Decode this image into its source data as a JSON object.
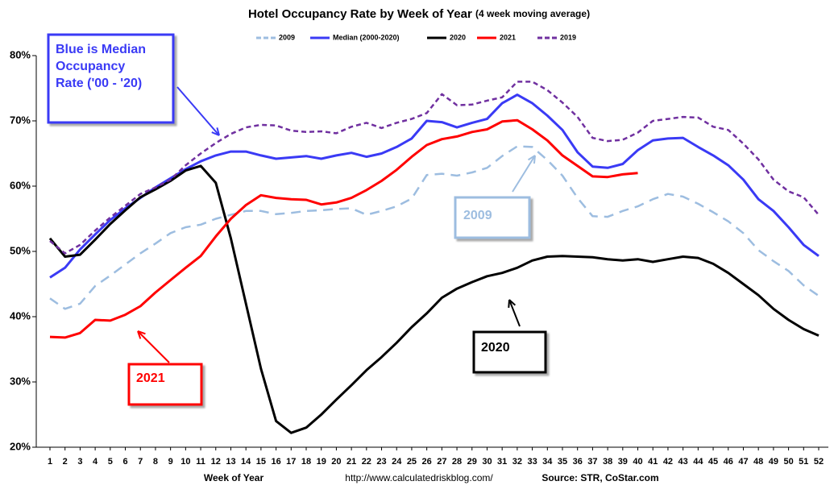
{
  "chart_data": {
    "type": "line",
    "title": "Hotel Occupancy Rate by  Week of Year",
    "subtitle": "(4 week moving average)",
    "x_label": "Week of Year",
    "url": "http://www.calculatedriskblog.com/",
    "source": "Source: STR, CoStar.com",
    "categories": [
      1,
      2,
      3,
      4,
      5,
      6,
      7,
      8,
      9,
      10,
      11,
      12,
      13,
      14,
      15,
      16,
      17,
      18,
      19,
      20,
      21,
      22,
      23,
      24,
      25,
      26,
      27,
      28,
      29,
      30,
      31,
      32,
      33,
      34,
      35,
      36,
      37,
      38,
      39,
      40,
      41,
      42,
      43,
      44,
      45,
      46,
      47,
      48,
      49,
      50,
      51,
      52
    ],
    "ylim": [
      20,
      80
    ],
    "yticks": [
      {
        "value": 20,
        "label": "20%"
      },
      {
        "value": 30,
        "label": "30%"
      },
      {
        "value": 40,
        "label": "40%"
      },
      {
        "value": 50,
        "label": "50%"
      },
      {
        "value": 60,
        "label": "60%"
      },
      {
        "value": 70,
        "label": "70%"
      },
      {
        "value": 80,
        "label": "80%"
      }
    ],
    "grid": false,
    "legend": "top",
    "series": [
      {
        "name": "2009",
        "color": "#9dbde0",
        "style": "dashed",
        "values": [
          42.8,
          41.2,
          42,
          44.7,
          46.3,
          48,
          49.7,
          51.2,
          52.8,
          53.7,
          54.1,
          55,
          55.6,
          56.2,
          56.2,
          55.7,
          55.9,
          56.2,
          56.3,
          56.5,
          56.6,
          55.6,
          56.2,
          56.9,
          58.1,
          61.7,
          61.9,
          61.6,
          62.1,
          62.8,
          64.6,
          66.1,
          66,
          64,
          61.6,
          58.2,
          55.4,
          55.3,
          56.2,
          56.9,
          58,
          58.8,
          58.4,
          57.3,
          56,
          54.6,
          52.8,
          50.2,
          48.5,
          47,
          44.8,
          43.2
        ]
      },
      {
        "name": "Median (2000-2020)",
        "color": "#3a3af5",
        "style": "solid",
        "values": [
          46,
          47.5,
          50.3,
          52.6,
          54.8,
          56.6,
          58.2,
          59.8,
          61.2,
          62.6,
          63.8,
          64.7,
          65.3,
          65.3,
          64.7,
          64.2,
          64.4,
          64.6,
          64.2,
          64.7,
          65.1,
          64.5,
          65,
          66,
          67.3,
          70,
          69.8,
          69,
          69.7,
          70.3,
          72.7,
          74,
          72.7,
          70.8,
          68.6,
          65.2,
          63,
          62.8,
          63.4,
          65.5,
          67,
          67.3,
          67.4,
          66,
          64.7,
          63.2,
          61,
          58,
          56.2,
          53.7,
          51,
          49.3
        ]
      },
      {
        "name": "2020",
        "color": "#000000",
        "style": "solid",
        "values": [
          52,
          49.2,
          49.5,
          51.8,
          54.2,
          56.3,
          58.3,
          59.5,
          60.8,
          62.4,
          63.1,
          60.5,
          52,
          42,
          32,
          24,
          22.2,
          23,
          25,
          27.3,
          29.5,
          31.8,
          33.8,
          36,
          38.4,
          40.5,
          42.9,
          44.3,
          45.3,
          46.2,
          46.7,
          47.5,
          48.6,
          49.2,
          49.3,
          49.2,
          49.1,
          48.8,
          48.6,
          48.8,
          48.4,
          48.8,
          49.2,
          49,
          48.1,
          46.7,
          45,
          43.3,
          41.2,
          39.5,
          38.1,
          37.1
        ]
      },
      {
        "name": "2021",
        "color": "#ff0000",
        "style": "solid",
        "values": [
          36.9,
          36.8,
          37.5,
          39.5,
          39.4,
          40.3,
          41.6,
          43.7,
          45.6,
          47.5,
          49.3,
          52.3,
          55,
          57.1,
          58.6,
          58.2,
          58,
          57.9,
          57.2,
          57.5,
          58.2,
          59.4,
          60.8,
          62.5,
          64.5,
          66.3,
          67.2,
          67.6,
          68.3,
          68.7,
          69.9,
          70.1,
          68.7,
          67,
          64.7,
          63.1,
          61.5,
          61.4,
          61.8,
          62,
          null,
          null,
          null,
          null,
          null,
          null,
          null,
          null,
          null,
          null,
          null,
          null
        ]
      },
      {
        "name": "2019",
        "color": "#7030a0",
        "style": "dashed",
        "values": [
          51.6,
          49.7,
          51,
          53.2,
          55.2,
          57,
          58.8,
          59.8,
          61,
          63.2,
          65,
          66.6,
          68,
          69,
          69.4,
          69.3,
          68.5,
          68.3,
          68.4,
          68.1,
          69.1,
          69.7,
          68.9,
          69.7,
          70.3,
          71.2,
          74.1,
          72.4,
          72.5,
          73.1,
          73.6,
          76,
          76,
          74.7,
          72.8,
          70.6,
          67.4,
          66.9,
          67.1,
          68.2,
          70,
          70.3,
          70.6,
          70.5,
          69.1,
          68.6,
          66.5,
          64.1,
          61,
          59.2,
          58.3,
          55.6
        ]
      }
    ],
    "annotations": [
      {
        "lines": [
          "Blue is Median",
          "Occupancy",
          "Rate ('00 - '20)"
        ],
        "color": "#3a3af5"
      },
      {
        "lines": [
          "2009"
        ],
        "color": "#9dbde0"
      },
      {
        "lines": [
          "2020"
        ],
        "color": "#000000"
      },
      {
        "lines": [
          "2021"
        ],
        "color": "#ff0000"
      }
    ]
  }
}
